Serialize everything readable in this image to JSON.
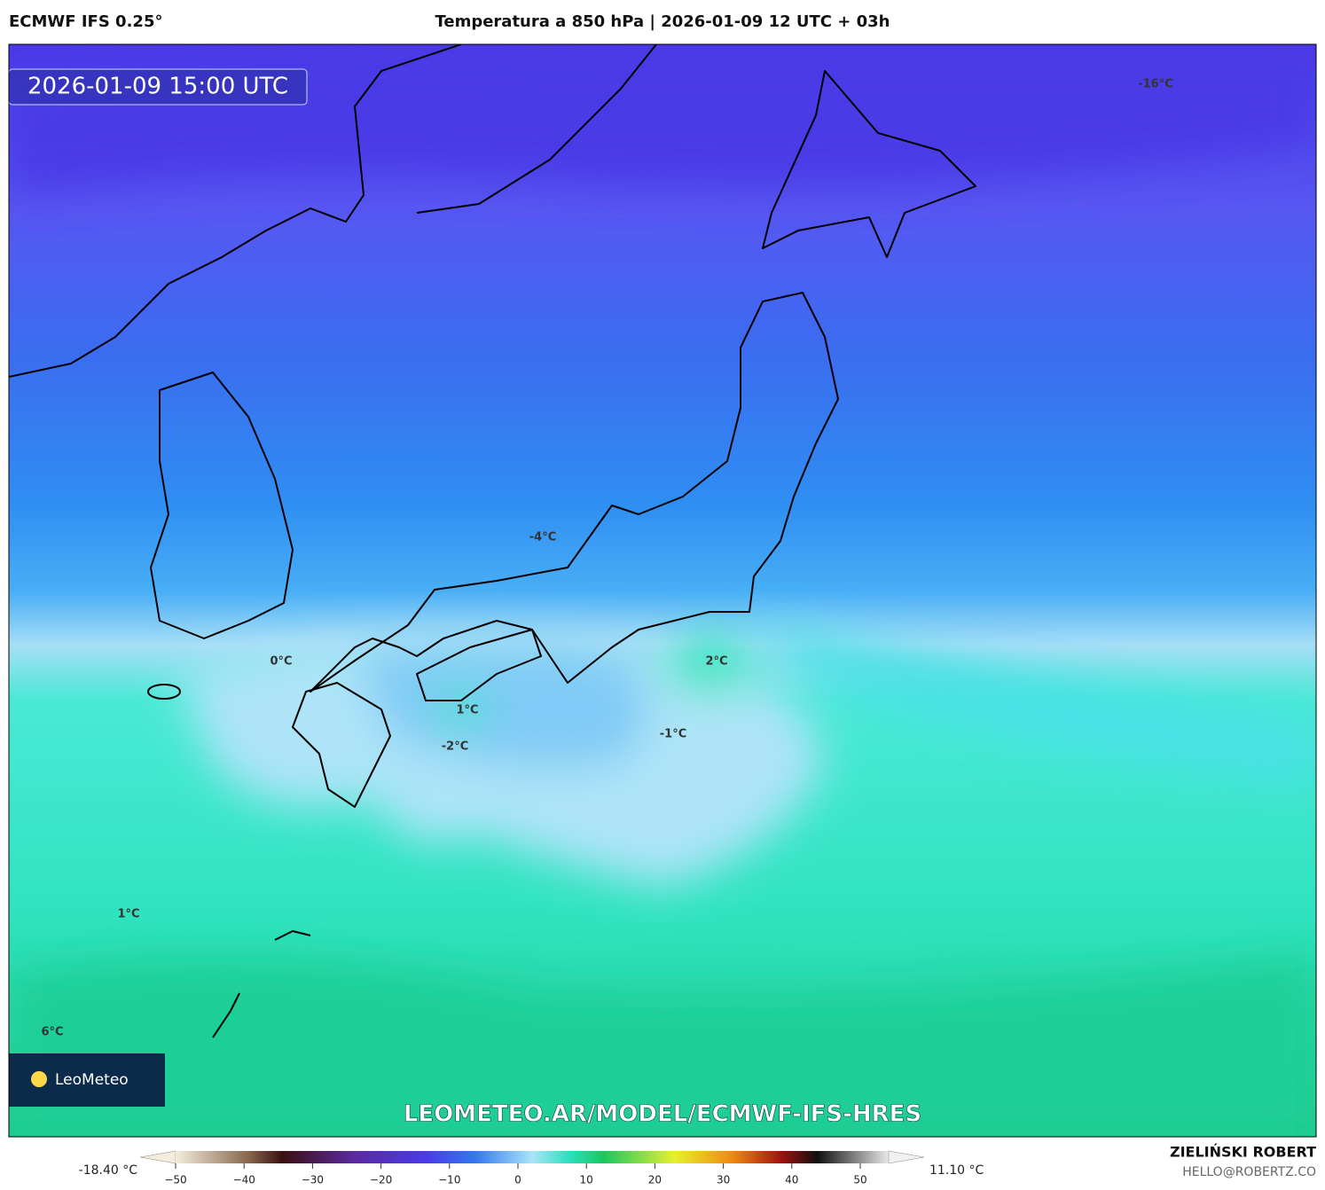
{
  "header": {
    "model": "ECMWF IFS 0.25°",
    "title": "Temperatura a 850 hPa | 2026-01-09 12 UTC + 03h"
  },
  "map": {
    "valid_time": "2026-01-09 15:00 UTC",
    "contour_labels": [
      "-16°C",
      "-4°C",
      "0°C",
      "2°C",
      "1°C",
      "-2°C",
      "-1°C",
      "1°C",
      "6°C"
    ],
    "logo": "LeoMeteo",
    "url": "LEOMETEO.AR/MODEL/ECMWF-IFS-HRES"
  },
  "colorbar": {
    "min_label": "-18.40 °C",
    "max_label": "11.10 °C",
    "ticks": [
      {
        "value": -50,
        "label": "−50"
      },
      {
        "value": -40,
        "label": "−40"
      },
      {
        "value": -30,
        "label": "−30"
      },
      {
        "value": -20,
        "label": "−20"
      },
      {
        "value": -10,
        "label": "−10"
      },
      0,
      10,
      20,
      30,
      40,
      50
    ]
  },
  "footer": {
    "author": "ZIELIŃSKI ROBERT",
    "contact": "HELLO@ROBERTZ.CO"
  }
}
